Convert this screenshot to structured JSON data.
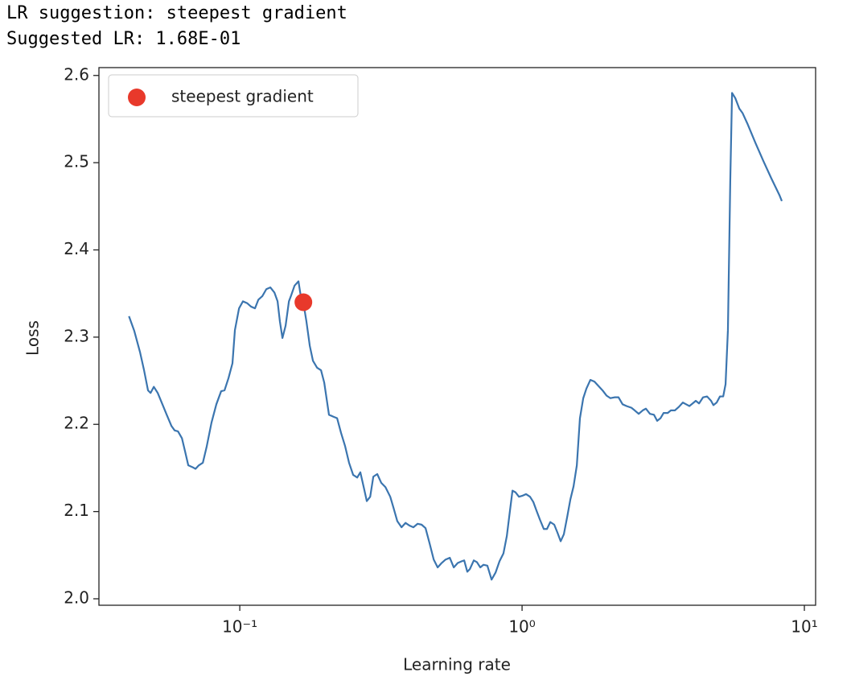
{
  "header": {
    "lines": [
      "LR suggestion: steepest gradient",
      "Suggested LR: 1.68E-01"
    ]
  },
  "chart_data": {
    "type": "line",
    "xlabel": "Learning rate",
    "ylabel": "Loss",
    "xscale": "log",
    "xlim": [
      0.0317,
      10.96
    ],
    "ylim": [
      1.9926,
      2.609
    ],
    "xticks": [
      {
        "value": 0.1,
        "label": "10⁻¹"
      },
      {
        "value": 1,
        "label": "10⁰"
      },
      {
        "value": 10,
        "label": "10¹"
      }
    ],
    "yticks": [
      {
        "value": 2,
        "label": "2.0"
      },
      2.1,
      2.2,
      2.3,
      2.4,
      2.5,
      2.6
    ],
    "legend": "upper left",
    "x": [
      0.0405,
      0.0423,
      0.0443,
      0.0458,
      0.0473,
      0.0483,
      0.0496,
      0.0512,
      0.0532,
      0.0551,
      0.0573,
      0.0588,
      0.0604,
      0.0624,
      0.064,
      0.0657,
      0.0679,
      0.0697,
      0.0716,
      0.074,
      0.0764,
      0.0794,
      0.0826,
      0.0859,
      0.0883,
      0.0912,
      0.0942,
      0.0961,
      0.0994,
      0.1026,
      0.1061,
      0.1096,
      0.1132,
      0.1164,
      0.1202,
      0.1242,
      0.1283,
      0.1327,
      0.1361,
      0.1387,
      0.1416,
      0.1453,
      0.1493,
      0.1521,
      0.1563,
      0.1614,
      0.1648,
      0.1679,
      0.1722,
      0.177,
      0.1816,
      0.1878,
      0.194,
      0.1991,
      0.207,
      0.2138,
      0.2212,
      0.2285,
      0.2361,
      0.2438,
      0.2522,
      0.2606,
      0.2674,
      0.2748,
      0.2818,
      0.2897,
      0.2972,
      0.3069,
      0.317,
      0.3281,
      0.3412,
      0.3499,
      0.3614,
      0.3741,
      0.3864,
      0.399,
      0.4121,
      0.4266,
      0.4406,
      0.455,
      0.4699,
      0.4864,
      0.5023,
      0.5188,
      0.5358,
      0.5546,
      0.5728,
      0.5916,
      0.6109,
      0.6237,
      0.6397,
      0.6531,
      0.6745,
      0.6918,
      0.7112,
      0.7295,
      0.7534,
      0.7798,
      0.8054,
      0.8318,
      0.859,
      0.8831,
      0.8995,
      0.9247,
      0.9484,
      0.975,
      1.0,
      1.033,
      1.067,
      1.096,
      1.125,
      1.156,
      1.194,
      1.225,
      1.259,
      1.3,
      1.334,
      1.37,
      1.406,
      1.445,
      1.483,
      1.522,
      1.563,
      1.603,
      1.647,
      1.69,
      1.746,
      1.804,
      1.864,
      1.927,
      1.991,
      2.056,
      2.125,
      2.196,
      2.27,
      2.344,
      2.44,
      2.506,
      2.589,
      2.675,
      2.745,
      2.838,
      2.932,
      3.01,
      3.092,
      3.171,
      3.28,
      3.366,
      3.477,
      3.592,
      3.711,
      3.811,
      3.915,
      4.02,
      4.124,
      4.236,
      4.377,
      4.522,
      4.672,
      4.762,
      4.891,
      5.023,
      5.158,
      5.258,
      5.36,
      5.464,
      5.544,
      5.693,
      5.882,
      6.037,
      6.279,
      6.702,
      7.155,
      7.638,
      8.155,
      8.321
    ],
    "series": [
      {
        "color": "#3b75af",
        "values": [
          2.324,
          2.307,
          2.283,
          2.262,
          2.239,
          2.236,
          2.243,
          2.236,
          2.223,
          2.211,
          2.198,
          2.193,
          2.192,
          2.184,
          2.169,
          2.153,
          2.151,
          2.149,
          2.153,
          2.156,
          2.175,
          2.202,
          2.223,
          2.238,
          2.239,
          2.253,
          2.27,
          2.308,
          2.333,
          2.341,
          2.339,
          2.335,
          2.333,
          2.343,
          2.347,
          2.355,
          2.357,
          2.351,
          2.341,
          2.318,
          2.299,
          2.313,
          2.341,
          2.348,
          2.359,
          2.364,
          2.345,
          2.34,
          2.318,
          2.29,
          2.273,
          2.265,
          2.262,
          2.248,
          2.211,
          2.209,
          2.207,
          2.19,
          2.175,
          2.156,
          2.142,
          2.139,
          2.145,
          2.128,
          2.112,
          2.117,
          2.14,
          2.143,
          2.133,
          2.128,
          2.117,
          2.105,
          2.089,
          2.082,
          2.087,
          2.084,
          2.082,
          2.086,
          2.085,
          2.081,
          2.064,
          2.045,
          2.036,
          2.041,
          2.045,
          2.047,
          2.036,
          2.041,
          2.043,
          2.044,
          2.031,
          2.034,
          2.044,
          2.042,
          2.036,
          2.039,
          2.038,
          2.022,
          2.03,
          2.043,
          2.052,
          2.072,
          2.093,
          2.124,
          2.122,
          2.117,
          2.118,
          2.12,
          2.117,
          2.111,
          2.101,
          2.091,
          2.08,
          2.08,
          2.088,
          2.085,
          2.076,
          2.066,
          2.074,
          2.094,
          2.114,
          2.129,
          2.153,
          2.207,
          2.23,
          2.241,
          2.251,
          2.249,
          2.244,
          2.239,
          2.233,
          2.23,
          2.231,
          2.231,
          2.223,
          2.221,
          2.219,
          2.216,
          2.212,
          2.216,
          2.218,
          2.212,
          2.211,
          2.204,
          2.207,
          2.213,
          2.213,
          2.216,
          2.216,
          2.22,
          2.225,
          2.223,
          2.221,
          2.224,
          2.227,
          2.224,
          2.231,
          2.232,
          2.227,
          2.222,
          2.225,
          2.232,
          2.232,
          2.246,
          2.308,
          2.479,
          2.58,
          2.574,
          2.562,
          2.557,
          2.545,
          2.523,
          2.502,
          2.482,
          2.463,
          2.456
        ]
      }
    ],
    "points": [
      {
        "name": "steepest gradient",
        "x": 0.168,
        "y": 2.34,
        "color": "#e8392b"
      }
    ]
  }
}
